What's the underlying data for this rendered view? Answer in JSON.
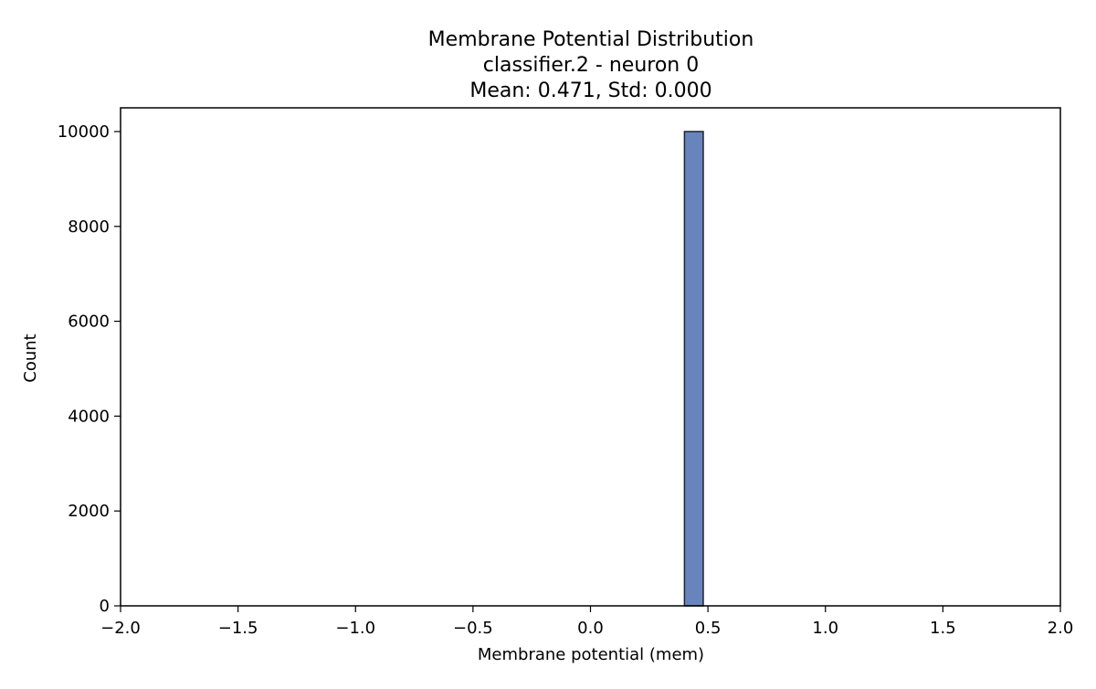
{
  "chart_data": {
    "type": "bar",
    "title": {
      "line1": "Membrane Potential Distribution",
      "line2": "classifier.2 - neuron 0",
      "line3": "Mean: 0.471, Std: 0.000"
    },
    "xlabel": "Membrane potential (mem)",
    "ylabel": "Count",
    "xlim": [
      -2.0,
      2.0
    ],
    "ylim": [
      0,
      10500
    ],
    "x_ticks": [
      -2.0,
      -1.5,
      -1.0,
      -0.5,
      0.0,
      0.5,
      1.0,
      1.5,
      2.0
    ],
    "x_tick_labels": [
      "−2.0",
      "−1.5",
      "−1.0",
      "−0.5",
      "0.0",
      "0.5",
      "1.0",
      "1.5",
      "2.0"
    ],
    "y_ticks": [
      0,
      2000,
      4000,
      6000,
      8000,
      10000
    ],
    "y_tick_labels": [
      "0",
      "2000",
      "4000",
      "6000",
      "8000",
      "10000"
    ],
    "bars": [
      {
        "x_start": 0.4,
        "x_end": 0.48,
        "value": 10000
      }
    ],
    "grid": false,
    "colors": {
      "bar_fill": "#6784bd",
      "bar_edge": "#1f2430",
      "axis": "#000000"
    }
  }
}
